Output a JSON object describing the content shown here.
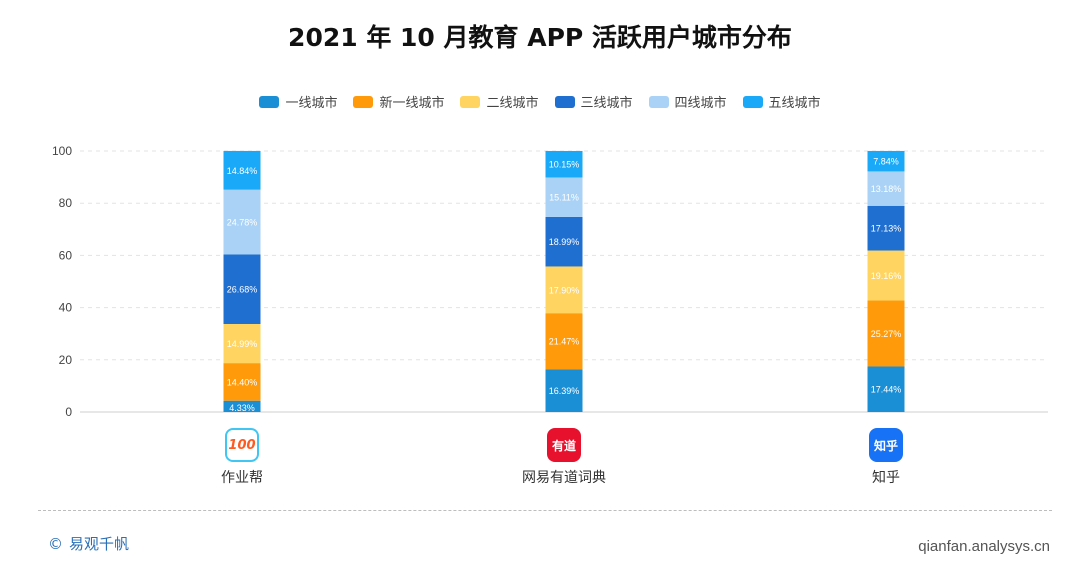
{
  "chart_data": {
    "type": "bar",
    "stacked": true,
    "title": "2021 年 10 月教育 APP 活跃用户城市分布",
    "categories": [
      "作业帮",
      "网易有道词典",
      "知乎"
    ],
    "ylim": [
      0,
      100
    ],
    "yticks": [
      0,
      20,
      40,
      60,
      80,
      100
    ],
    "grid": true,
    "legend_position": "top",
    "series": [
      {
        "name": "一线城市",
        "color": "#1a8fd6",
        "values": [
          4.33,
          16.39,
          17.44
        ],
        "labels": [
          "4.33%",
          "16.39%",
          "17.44%"
        ]
      },
      {
        "name": "新一线城市",
        "color": "#ff9a0a",
        "values": [
          14.4,
          21.47,
          25.27
        ],
        "labels": [
          "14.40%",
          "21.47%",
          "25.27%"
        ]
      },
      {
        "name": "二线城市",
        "color": "#ffd460",
        "values": [
          14.99,
          17.9,
          19.16
        ],
        "labels": [
          "14.99%",
          "17.90%",
          "19.16%"
        ]
      },
      {
        "name": "三线城市",
        "color": "#1f6fd0",
        "values": [
          26.68,
          18.99,
          17.13
        ],
        "labels": [
          "26.68%",
          "18.99%",
          "17.13%"
        ]
      },
      {
        "name": "四线城市",
        "color": "#a9d2f6",
        "values": [
          24.78,
          15.11,
          13.18
        ],
        "labels": [
          "24.78%",
          "15.11%",
          "13.18%"
        ]
      },
      {
        "name": "五线城市",
        "color": "#1aa9f8",
        "values": [
          14.84,
          10.15,
          7.84
        ],
        "labels": [
          "14.84%",
          "10.15%",
          "7.84%"
        ]
      }
    ]
  },
  "apps": [
    {
      "label": "作业帮",
      "icon_name": "zuoyebang-icon",
      "icon_text": "100",
      "icon_color": "#ffffff",
      "icon_text_color": "#ff5a1f"
    },
    {
      "label": "网易有道词典",
      "icon_name": "youdao-icon",
      "icon_text": "有道",
      "icon_color": "#e8112d",
      "icon_text_color": "#ffffff"
    },
    {
      "label": "知乎",
      "icon_name": "zhihu-icon",
      "icon_text": "知乎",
      "icon_color": "#1772f6",
      "icon_text_color": "#ffffff"
    }
  ],
  "footer": {
    "copyright_symbol": "©",
    "brand": "易观千帆",
    "source": "qianfan.analysys.cn"
  }
}
